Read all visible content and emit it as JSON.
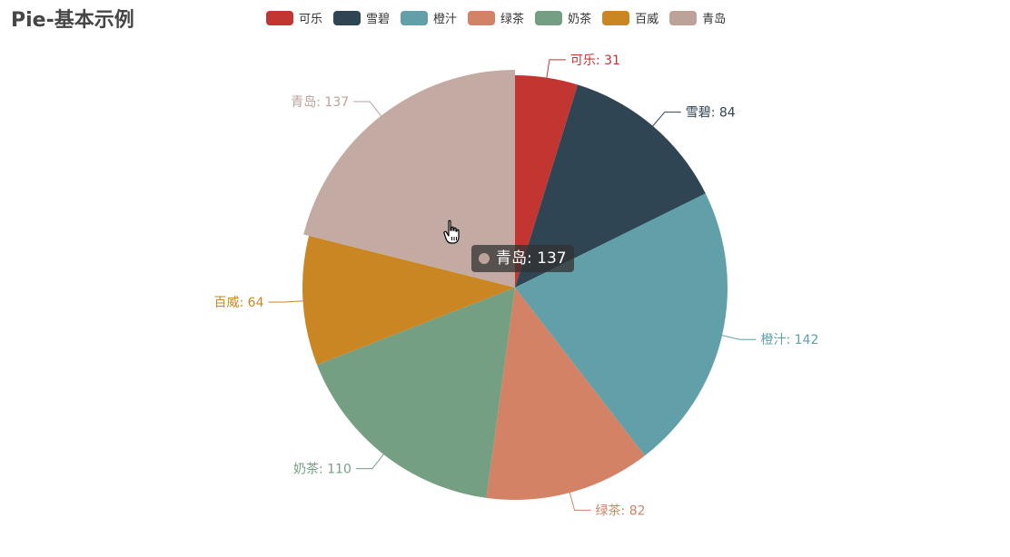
{
  "chart_data": {
    "type": "pie",
    "title": "Pie-基本示例",
    "categories": [
      "可乐",
      "雪碧",
      "橙汁",
      "绿茶",
      "奶茶",
      "百威",
      "青岛"
    ],
    "values": [
      31,
      84,
      142,
      82,
      110,
      64,
      137
    ],
    "colors": [
      "#c23531",
      "#2f4554",
      "#61a0a8",
      "#d48265",
      "#749f83",
      "#ca8622",
      "#bda29a"
    ],
    "legend_position": "top",
    "data_labels": [
      "可乐: 31",
      "雪碧: 84",
      "橙汁: 142",
      "绿茶: 82",
      "奶茶: 110",
      "百威: 64",
      "青岛: 137"
    ],
    "highlighted": "青岛"
  },
  "tooltip": {
    "text": "青岛: 137",
    "dot_color": "#bda29a"
  },
  "cursor": "pointer-hand-icon"
}
